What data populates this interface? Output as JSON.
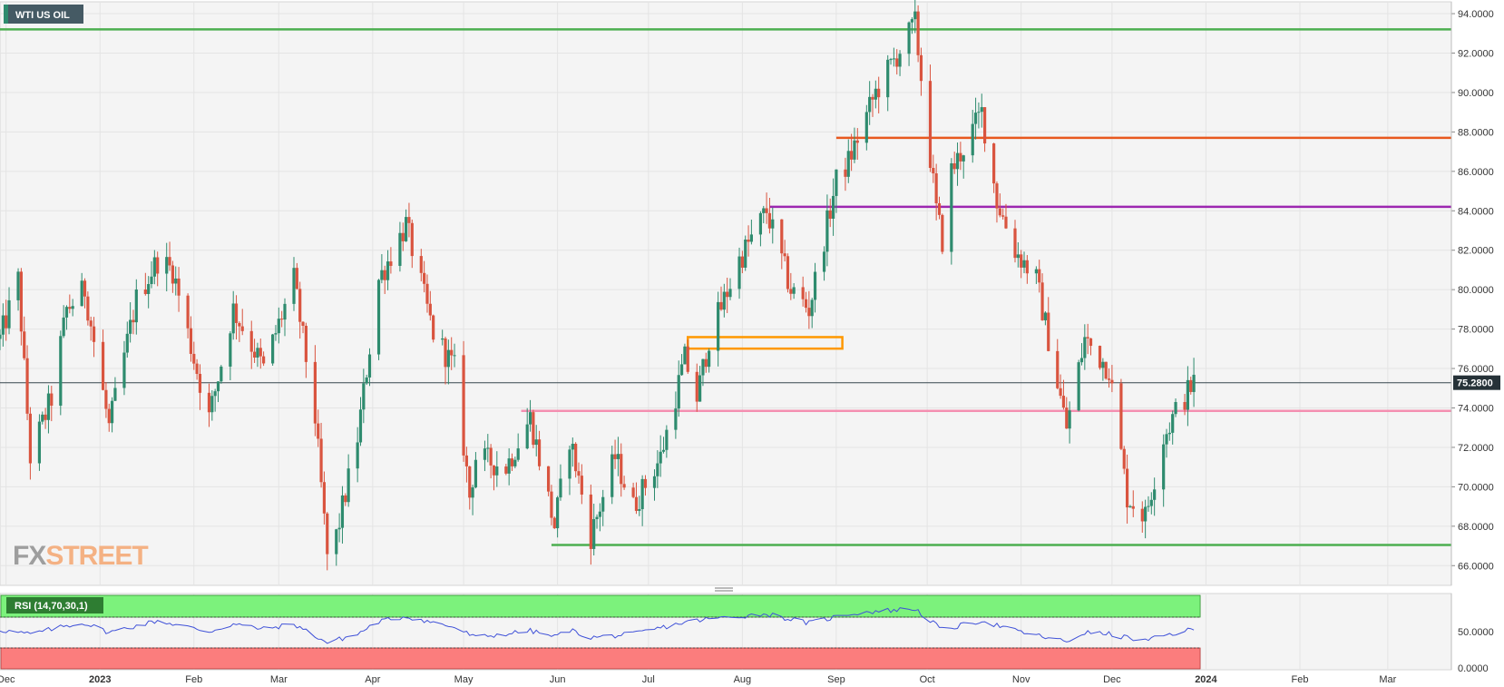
{
  "instrument": "WTI US OIL",
  "watermark": {
    "fx": "FX",
    "street": "STREET"
  },
  "colors": {
    "bull": "#2e8b6e",
    "bear": "#d9543f",
    "grid": "#e4e4e4",
    "plot_bg": "#f4f4f4",
    "support": "#4caf50",
    "resistance_orange": "#e8591f",
    "resistance_purple": "#9c27b0",
    "pink_level": "#f48fb1",
    "box": "#ff9800",
    "rsi_line": "#3f51d8",
    "rsi_overbought": "#7cf27c",
    "rsi_oversold": "#fb7d7d"
  },
  "price_axis": {
    "min": 65.0,
    "max": 94.6,
    "ticks": [
      "94.0000",
      "92.0000",
      "90.0000",
      "88.0000",
      "86.0000",
      "84.0000",
      "82.0000",
      "80.0000",
      "78.0000",
      "76.0000",
      "74.0000",
      "72.0000",
      "70.0000",
      "68.0000",
      "66.0000"
    ]
  },
  "current_price": {
    "label": "75.2800",
    "value": 75.28
  },
  "time_axis": {
    "labels": [
      "Dec",
      "2023",
      "Feb",
      "Mar",
      "Apr",
      "May",
      "Jun",
      "Jul",
      "Aug",
      "Sep",
      "Oct",
      "Nov",
      "Dec",
      "2024",
      "Feb",
      "Mar"
    ],
    "bold": [
      "2023",
      "2024"
    ]
  },
  "levels": [
    {
      "name": "top-support-line",
      "value": 93.2,
      "from": "start",
      "color": "support"
    },
    {
      "name": "orange-resistance-line",
      "value": 87.7,
      "from": "2023-09-01",
      "color": "resistance_orange"
    },
    {
      "name": "purple-resistance-line",
      "value": 84.2,
      "from": "2023-08-10",
      "color": "resistance_purple"
    },
    {
      "name": "pink-level-line",
      "value": 73.85,
      "from": "2023-05-20",
      "color": "pink_level"
    },
    {
      "name": "bottom-support-line",
      "value": 67.05,
      "from": "2023-05-30",
      "color": "support"
    }
  ],
  "zone_box": {
    "from": "2023-07-14",
    "to": "2023-09-03",
    "low": 77.1,
    "high": 77.5
  },
  "rsi": {
    "label": "RSI (14,70,30,1)",
    "ticks": [
      "50.0000",
      "0.0000"
    ]
  },
  "chart_data": {
    "type": "candlestick",
    "title": "WTI US OIL",
    "ylim": [
      65.0,
      94.6
    ],
    "xlim": [
      "2022-11-29",
      "2024-03-22"
    ],
    "anchors": [
      [
        "2022-11-29",
        77.5
      ],
      [
        "2022-12-05",
        80.5
      ],
      [
        "2022-12-09",
        71.5
      ],
      [
        "2022-12-16",
        74.5
      ],
      [
        "2022-12-21",
        79.0
      ],
      [
        "2022-12-27",
        80.0
      ],
      [
        "2023-01-04",
        73.0
      ],
      [
        "2023-01-13",
        79.5
      ],
      [
        "2023-01-20",
        81.5
      ],
      [
        "2023-01-25",
        81.0
      ],
      [
        "2023-02-01",
        76.5
      ],
      [
        "2023-02-06",
        73.5
      ],
      [
        "2023-02-14",
        79.0
      ],
      [
        "2023-02-24",
        76.0
      ],
      [
        "2023-03-06",
        80.5
      ],
      [
        "2023-03-13",
        73.5
      ],
      [
        "2023-03-17",
        66.5
      ],
      [
        "2023-03-20",
        67.5
      ],
      [
        "2023-03-27",
        72.5
      ],
      [
        "2023-04-03",
        80.5
      ],
      [
        "2023-04-12",
        83.3
      ],
      [
        "2023-04-21",
        77.8
      ],
      [
        "2023-04-28",
        76.0
      ],
      [
        "2023-05-03",
        69.5
      ],
      [
        "2023-05-05",
        71.5
      ],
      [
        "2023-05-15",
        71.0
      ],
      [
        "2023-05-23",
        73.5
      ],
      [
        "2023-05-31",
        68.0
      ],
      [
        "2023-06-05",
        72.5
      ],
      [
        "2023-06-12",
        67.5
      ],
      [
        "2023-06-20",
        71.5
      ],
      [
        "2023-06-26",
        69.0
      ],
      [
        "2023-07-05",
        71.5
      ],
      [
        "2023-07-13",
        76.5
      ],
      [
        "2023-07-17",
        74.5
      ],
      [
        "2023-07-21",
        77.5
      ],
      [
        "2023-07-31",
        81.5
      ],
      [
        "2023-08-09",
        84.0
      ],
      [
        "2023-08-17",
        80.0
      ],
      [
        "2023-08-23",
        79.0
      ],
      [
        "2023-09-01",
        85.5
      ],
      [
        "2023-09-05",
        86.5
      ],
      [
        "2023-09-14",
        90.0
      ],
      [
        "2023-09-27",
        93.5
      ],
      [
        "2023-10-04",
        84.0
      ],
      [
        "2023-10-06",
        82.5
      ],
      [
        "2023-10-09",
        86.0
      ],
      [
        "2023-10-19",
        89.0
      ],
      [
        "2023-10-24",
        84.5
      ],
      [
        "2023-10-30",
        82.0
      ],
      [
        "2023-11-06",
        80.5
      ],
      [
        "2023-11-16",
        73.0
      ],
      [
        "2023-11-22",
        77.5
      ],
      [
        "2023-11-30",
        76.0
      ],
      [
        "2023-12-06",
        69.5
      ],
      [
        "2023-12-12",
        68.5
      ],
      [
        "2023-12-18",
        72.5
      ],
      [
        "2023-12-22",
        73.8
      ],
      [
        "2023-12-28",
        75.3
      ]
    ],
    "rsi_series": [
      [
        "2022-11-29",
        47
      ],
      [
        "2022-12-09",
        42
      ],
      [
        "2022-12-21",
        52
      ],
      [
        "2022-12-27",
        55
      ],
      [
        "2023-01-04",
        44
      ],
      [
        "2023-01-20",
        58
      ],
      [
        "2023-02-06",
        45
      ],
      [
        "2023-02-14",
        54
      ],
      [
        "2023-02-24",
        48
      ],
      [
        "2023-03-06",
        54
      ],
      [
        "2023-03-17",
        32
      ],
      [
        "2023-03-27",
        42
      ],
      [
        "2023-04-03",
        57
      ],
      [
        "2023-04-12",
        63
      ],
      [
        "2023-04-28",
        50
      ],
      [
        "2023-05-05",
        38
      ],
      [
        "2023-05-23",
        46
      ],
      [
        "2023-05-31",
        39
      ],
      [
        "2023-06-05",
        47
      ],
      [
        "2023-06-12",
        38
      ],
      [
        "2023-06-26",
        42
      ],
      [
        "2023-07-13",
        56
      ],
      [
        "2023-07-21",
        60
      ],
      [
        "2023-08-09",
        66
      ],
      [
        "2023-08-23",
        55
      ],
      [
        "2023-09-05",
        66
      ],
      [
        "2023-09-14",
        69
      ],
      [
        "2023-09-27",
        72
      ],
      [
        "2023-10-06",
        47
      ],
      [
        "2023-10-19",
        58
      ],
      [
        "2023-10-30",
        46
      ],
      [
        "2023-11-16",
        33
      ],
      [
        "2023-11-22",
        44
      ],
      [
        "2023-11-30",
        42
      ],
      [
        "2023-12-12",
        34
      ],
      [
        "2023-12-18",
        40
      ],
      [
        "2023-12-28",
        48
      ]
    ]
  }
}
